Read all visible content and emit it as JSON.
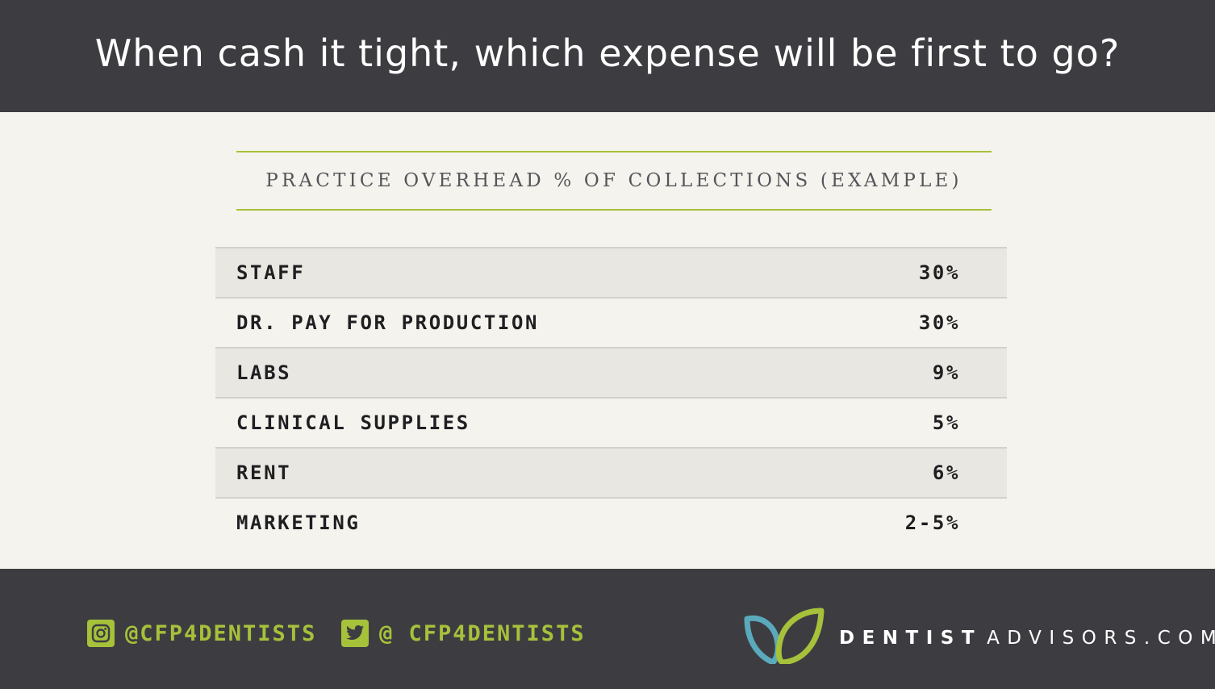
{
  "header": {
    "title": "When cash it tight, which expense will be first to go?"
  },
  "table": {
    "title": "PRACTICE OVERHEAD % OF COLLECTIONS (EXAMPLE)",
    "rows": [
      {
        "label": "STAFF",
        "value": "30%"
      },
      {
        "label": "DR. PAY FOR PRODUCTION",
        "value": "30%"
      },
      {
        "label": "LABS",
        "value": "9%"
      },
      {
        "label": "CLINICAL SUPPLIES",
        "value": "5%"
      },
      {
        "label": "RENT",
        "value": "6%"
      },
      {
        "label": "MARKETING",
        "value": "2-5%"
      }
    ]
  },
  "footer": {
    "instagram": {
      "icon": "instagram-icon",
      "handle": "@CFP4DENTISTS"
    },
    "twitter": {
      "icon": "twitter-icon",
      "handle": "@ CFP4DENTISTS"
    },
    "brand": {
      "name_strong": "DENTIST",
      "name_light": "ADVISORS.COM",
      "logo": "leaf-logo"
    }
  },
  "colors": {
    "dark": "#3d3d41",
    "accent": "#a6c13a",
    "background": "#f5f3ed",
    "logo_teal": "#5aaabb"
  }
}
